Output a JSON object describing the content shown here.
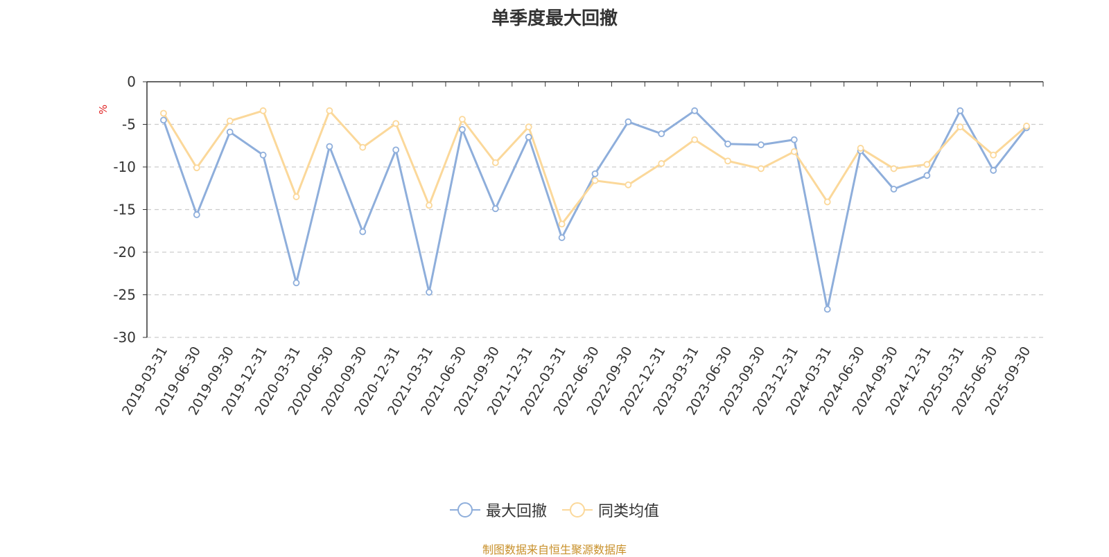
{
  "chart_data": {
    "type": "line",
    "title": "单季度最大回撤",
    "ylabel": "%",
    "ylim": [
      -30,
      0
    ],
    "yticks": [
      0,
      -5,
      -10,
      -15,
      -20,
      -25,
      -30
    ],
    "grid": true,
    "legend_position": "bottom",
    "categories": [
      "2019-03-31",
      "2019-06-30",
      "2019-09-30",
      "2019-12-31",
      "2020-03-31",
      "2020-06-30",
      "2020-09-30",
      "2020-12-31",
      "2021-03-31",
      "2021-06-30",
      "2021-09-30",
      "2021-12-31",
      "2022-03-31",
      "2022-06-30",
      "2022-09-30",
      "2022-12-31",
      "2023-03-31",
      "2023-06-30",
      "2023-09-30",
      "2023-12-31",
      "2024-03-31",
      "2024-06-30",
      "2024-09-30",
      "2024-12-31",
      "2025-03-31",
      "2025-06-30",
      "2025-09-30"
    ],
    "series": [
      {
        "name": "最大回撤",
        "color": "#8eaedb",
        "values": [
          -4.5,
          -15.6,
          -5.9,
          -8.6,
          -23.6,
          -7.6,
          -17.6,
          -8.0,
          -24.7,
          -5.6,
          -14.9,
          -6.5,
          -18.3,
          -10.8,
          -4.7,
          -6.1,
          -3.4,
          -7.3,
          -7.4,
          -6.8,
          -26.7,
          -8.1,
          -12.6,
          -11.0,
          -3.4,
          -10.4,
          -5.4
        ]
      },
      {
        "name": "同类均值",
        "color": "#fbd89a",
        "values": [
          -3.7,
          -10.1,
          -4.6,
          -3.4,
          -13.5,
          -3.4,
          -7.7,
          -4.9,
          -14.5,
          -4.4,
          -9.5,
          -5.3,
          -16.7,
          -11.6,
          -12.1,
          -9.6,
          -6.8,
          -9.3,
          -10.2,
          -8.2,
          -14.1,
          -7.8,
          -10.2,
          -9.7,
          -5.3,
          -8.6,
          -5.2
        ]
      }
    ],
    "source": "制图数据来自恒生聚源数据库"
  }
}
